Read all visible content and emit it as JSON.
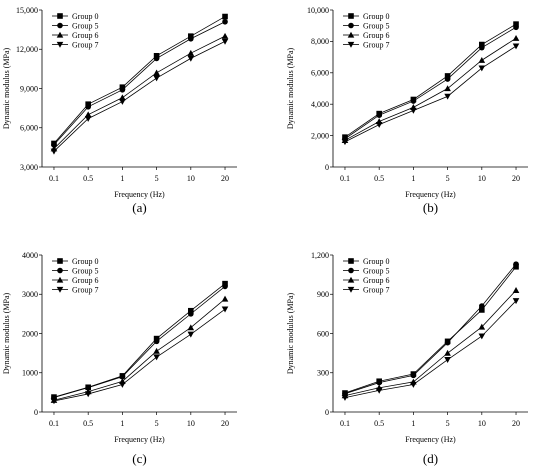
{
  "figure": {
    "background": "#ffffff",
    "line_color": "#000000"
  },
  "chart_data": [
    {
      "id": "a",
      "type": "line",
      "panel_label": "(a)",
      "xlabel": "Frequency (Hz)",
      "ylabel": "Dynamic modulus (MPa)",
      "categories": [
        "0.1",
        "0.5",
        "1",
        "5",
        "10",
        "20"
      ],
      "ylim": [
        3000,
        15000
      ],
      "yticks": [
        3000,
        6000,
        9000,
        12000,
        15000
      ],
      "ytick_labels": [
        "3,000",
        "6,000",
        "9,000",
        "12,000",
        "15,000"
      ],
      "grid": false,
      "legend": "top-left",
      "series": [
        {
          "name": "Group 0",
          "marker": "square",
          "values": [
            4800,
            7800,
            9100,
            11500,
            13000,
            14500
          ]
        },
        {
          "name": "Group 5",
          "marker": "circle",
          "values": [
            4700,
            7600,
            8900,
            11300,
            12800,
            14100
          ]
        },
        {
          "name": "Group 6",
          "marker": "triangle-up",
          "values": [
            4400,
            7000,
            8300,
            10200,
            11700,
            13000
          ]
        },
        {
          "name": "Group 7",
          "marker": "triangle-down",
          "values": [
            4200,
            6700,
            8000,
            9800,
            11300,
            12600
          ]
        }
      ]
    },
    {
      "id": "b",
      "type": "line",
      "panel_label": "(b)",
      "xlabel": "Frequency (Hz)",
      "ylabel": "Dynamic modulus (MPa)",
      "categories": [
        "0.1",
        "0.5",
        "1",
        "5",
        "10",
        "20"
      ],
      "ylim": [
        0,
        10000
      ],
      "yticks": [
        0,
        2000,
        4000,
        6000,
        8000,
        10000
      ],
      "ytick_labels": [
        "0",
        "2,000",
        "4,000",
        "6,000",
        "8,000",
        "10,000"
      ],
      "grid": false,
      "legend": "top-left",
      "series": [
        {
          "name": "Group 0",
          "marker": "square",
          "values": [
            1900,
            3400,
            4300,
            5800,
            7800,
            9100
          ]
        },
        {
          "name": "Group 5",
          "marker": "circle",
          "values": [
            1800,
            3300,
            4200,
            5600,
            7600,
            8900
          ]
        },
        {
          "name": "Group 6",
          "marker": "triangle-up",
          "values": [
            1700,
            2900,
            3800,
            5000,
            6800,
            8200
          ]
        },
        {
          "name": "Group 7",
          "marker": "triangle-down",
          "values": [
            1600,
            2700,
            3600,
            4500,
            6300,
            7700
          ]
        }
      ]
    },
    {
      "id": "c",
      "type": "line",
      "panel_label": "(c)",
      "xlabel": "Frequency (Hz)",
      "ylabel": "Dynamic modulus (MPa)",
      "categories": [
        "0.1",
        "0.5",
        "1",
        "5",
        "10",
        "20"
      ],
      "ylim": [
        0,
        4000
      ],
      "yticks": [
        0,
        1000,
        2000,
        3000,
        4000
      ],
      "ytick_labels": [
        "0",
        "1000",
        "2000",
        "3000",
        "4000"
      ],
      "grid": false,
      "legend": "top-left",
      "series": [
        {
          "name": "Group 0",
          "marker": "square",
          "values": [
            380,
            630,
            920,
            1870,
            2580,
            3270
          ]
        },
        {
          "name": "Group 5",
          "marker": "circle",
          "values": [
            370,
            620,
            900,
            1800,
            2500,
            3200
          ]
        },
        {
          "name": "Group 6",
          "marker": "triangle-up",
          "values": [
            300,
            520,
            780,
            1550,
            2150,
            2880
          ]
        },
        {
          "name": "Group 7",
          "marker": "triangle-down",
          "values": [
            280,
            460,
            700,
            1400,
            1980,
            2620
          ]
        }
      ]
    },
    {
      "id": "d",
      "type": "line",
      "panel_label": "(d)",
      "xlabel": "Frequency (Hz)",
      "ylabel": "Dynamic modulus (MPa)",
      "categories": [
        "0.1",
        "0.5",
        "1",
        "5",
        "10",
        "20"
      ],
      "ylim": [
        0,
        1200
      ],
      "yticks": [
        0,
        300,
        600,
        900,
        1200
      ],
      "ytick_labels": [
        "0",
        "300",
        "600",
        "900",
        "1,200"
      ],
      "grid": false,
      "legend": "top-left",
      "series": [
        {
          "name": "Group 0",
          "marker": "square",
          "values": [
            145,
            235,
            290,
            540,
            780,
            1110
          ]
        },
        {
          "name": "Group 5",
          "marker": "circle",
          "values": [
            140,
            225,
            280,
            530,
            810,
            1130
          ]
        },
        {
          "name": "Group 6",
          "marker": "triangle-up",
          "values": [
            125,
            185,
            230,
            450,
            650,
            930
          ]
        },
        {
          "name": "Group 7",
          "marker": "triangle-down",
          "values": [
            110,
            165,
            210,
            400,
            580,
            850
          ]
        }
      ]
    }
  ]
}
